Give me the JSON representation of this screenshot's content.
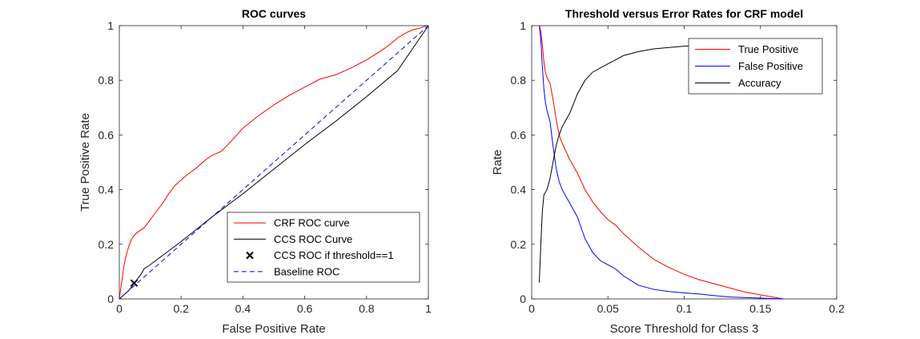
{
  "chart_data": [
    {
      "type": "line",
      "title": "ROC curves",
      "xlabel": "False Positive Rate",
      "ylabel": "True Positive Rate",
      "xlim": [
        0,
        1
      ],
      "ylim": [
        0,
        1
      ],
      "xticks": [
        0,
        0.2,
        0.4,
        0.6,
        0.8,
        1
      ],
      "xtick_labels": [
        "0",
        "0.2",
        "0.4",
        "0.6",
        "0.8",
        "1"
      ],
      "yticks": [
        0,
        0.2,
        0.4,
        0.6,
        0.8,
        1
      ],
      "ytick_labels": [
        "0",
        "0.2",
        "0.4",
        "0.6",
        "0.8",
        "1"
      ],
      "grid": false,
      "legend_position": "bottom-right",
      "series": [
        {
          "name": "CRF ROC curve",
          "color": "#ff0000",
          "style": "solid",
          "x": [
            0,
            0.005,
            0.01,
            0.015,
            0.02,
            0.03,
            0.04,
            0.05,
            0.06,
            0.08,
            0.1,
            0.12,
            0.14,
            0.16,
            0.18,
            0.2,
            0.22,
            0.25,
            0.28,
            0.3,
            0.33,
            0.36,
            0.4,
            0.45,
            0.5,
            0.55,
            0.6,
            0.65,
            0.7,
            0.75,
            0.8,
            0.85,
            0.88,
            0.9,
            0.93,
            0.95,
            0.97,
            0.99,
            1
          ],
          "y": [
            0,
            0.04,
            0.08,
            0.12,
            0.15,
            0.19,
            0.22,
            0.235,
            0.245,
            0.26,
            0.29,
            0.32,
            0.35,
            0.385,
            0.415,
            0.435,
            0.455,
            0.48,
            0.51,
            0.525,
            0.54,
            0.575,
            0.625,
            0.67,
            0.71,
            0.745,
            0.775,
            0.805,
            0.82,
            0.845,
            0.875,
            0.91,
            0.935,
            0.955,
            0.975,
            0.985,
            0.99,
            0.998,
            1
          ]
        },
        {
          "name": "CCS ROC Curve",
          "color": "#000000",
          "style": "solid",
          "x": [
            0,
            0.005,
            0.01,
            0.02,
            0.03,
            0.04,
            0.05,
            0.06,
            0.07,
            0.08,
            0.1,
            0.2,
            0.3,
            0.4,
            0.5,
            0.6,
            0.7,
            0.8,
            0.9,
            1
          ],
          "y": [
            0,
            0.005,
            0.01,
            0.02,
            0.03,
            0.045,
            0.06,
            0.075,
            0.09,
            0.11,
            0.125,
            0.21,
            0.3,
            0.385,
            0.475,
            0.565,
            0.65,
            0.74,
            0.835,
            1
          ]
        },
        {
          "name": "CCS ROC if threshold==1",
          "color": "#000000",
          "marker": "x",
          "x": [
            0.048
          ],
          "y": [
            0.058
          ]
        },
        {
          "name": "Baseline ROC",
          "color": "#0000ff",
          "style": "dashed",
          "x": [
            0,
            1
          ],
          "y": [
            0,
            1
          ]
        }
      ]
    },
    {
      "type": "line",
      "title": "Threshold versus Error Rates for CRF model",
      "xlabel": "Score Threshold for Class 3",
      "ylabel": "Rate",
      "xlim": [
        0,
        0.2
      ],
      "ylim": [
        0,
        1
      ],
      "xticks": [
        0,
        0.05,
        0.1,
        0.15,
        0.2
      ],
      "xtick_labels": [
        "0",
        "0.05",
        "0.1",
        "0.15",
        "0.2"
      ],
      "yticks": [
        0,
        0.2,
        0.4,
        0.6,
        0.8,
        1
      ],
      "ytick_labels": [
        "0",
        "0.2",
        "0.4",
        "0.6",
        "0.8",
        "1"
      ],
      "grid": false,
      "legend_position": "top-right",
      "series": [
        {
          "name": "True Positive",
          "color": "#ff0000",
          "x": [
            0.005,
            0.006,
            0.007,
            0.008,
            0.009,
            0.01,
            0.012,
            0.014,
            0.016,
            0.018,
            0.02,
            0.025,
            0.03,
            0.035,
            0.04,
            0.045,
            0.05,
            0.055,
            0.06,
            0.07,
            0.08,
            0.09,
            0.1,
            0.11,
            0.12,
            0.13,
            0.14,
            0.15,
            0.16,
            0.165
          ],
          "y": [
            1,
            0.98,
            0.93,
            0.87,
            0.83,
            0.81,
            0.79,
            0.73,
            0.66,
            0.6,
            0.57,
            0.51,
            0.46,
            0.4,
            0.355,
            0.32,
            0.29,
            0.27,
            0.24,
            0.19,
            0.145,
            0.115,
            0.09,
            0.07,
            0.055,
            0.04,
            0.025,
            0.015,
            0.005,
            0
          ]
        },
        {
          "name": "False Positive",
          "color": "#0000ff",
          "x": [
            0.005,
            0.006,
            0.007,
            0.008,
            0.009,
            0.01,
            0.012,
            0.014,
            0.016,
            0.018,
            0.02,
            0.025,
            0.03,
            0.035,
            0.04,
            0.045,
            0.05,
            0.055,
            0.06,
            0.07,
            0.08,
            0.09,
            0.1,
            0.11,
            0.12,
            0.13,
            0.15,
            0.165
          ],
          "y": [
            1,
            0.95,
            0.85,
            0.77,
            0.72,
            0.69,
            0.65,
            0.56,
            0.48,
            0.43,
            0.4,
            0.35,
            0.3,
            0.22,
            0.17,
            0.14,
            0.125,
            0.11,
            0.085,
            0.05,
            0.035,
            0.027,
            0.022,
            0.018,
            0.012,
            0.007,
            0.003,
            0
          ]
        },
        {
          "name": "Accuracy",
          "color": "#000000",
          "x": [
            0.005,
            0.006,
            0.007,
            0.008,
            0.009,
            0.01,
            0.012,
            0.014,
            0.016,
            0.018,
            0.02,
            0.025,
            0.03,
            0.035,
            0.04,
            0.045,
            0.05,
            0.055,
            0.06,
            0.07,
            0.08,
            0.09,
            0.1,
            0.12,
            0.15,
            0.19
          ],
          "y": [
            0.06,
            0.2,
            0.32,
            0.38,
            0.39,
            0.4,
            0.44,
            0.5,
            0.56,
            0.6,
            0.63,
            0.68,
            0.75,
            0.8,
            0.83,
            0.845,
            0.86,
            0.875,
            0.89,
            0.905,
            0.915,
            0.92,
            0.925,
            0.93,
            0.935,
            0.94
          ]
        }
      ]
    }
  ]
}
